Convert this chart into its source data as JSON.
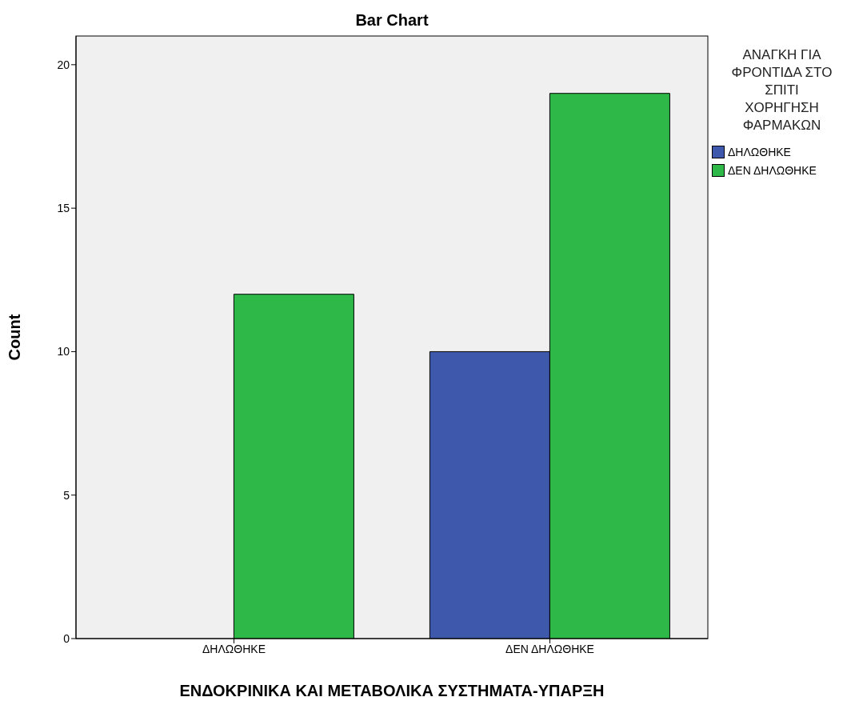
{
  "chart_data": {
    "type": "bar",
    "title": "Bar Chart",
    "xlabel": "ΕΝΔΟΚΡΙΝΙΚΑ ΚΑΙ ΜΕΤΑΒΟΛΙΚΑ ΣΥΣΤΗΜΑΤΑ-ΥΠΑΡΞΗ",
    "ylabel": "Count",
    "legend_title": "ΑΝΑΓΚΗ ΓΙΑ ΦΡΟΝΤΙΔΑ ΣΤΟ ΣΠΙΤΙ ΧΟΡΗΓΗΣΗ ΦΑΡΜΑΚΩΝ",
    "categories": [
      "ΔΗΛΩΘΗΚΕ",
      "ΔΕΝ ΔΗΛΩΘΗΚΕ"
    ],
    "series": [
      {
        "name": "ΔΗΛΩΘΗΚΕ",
        "color": "#3e58ac",
        "values": [
          0,
          10
        ]
      },
      {
        "name": "ΔΕΝ ΔΗΛΩΘΗΚΕ",
        "color": "#2eb848",
        "values": [
          12,
          19
        ]
      }
    ],
    "ylim": [
      0,
      21
    ],
    "yticks": [
      0,
      5,
      10,
      15,
      20
    ],
    "grid": false,
    "legend": "top right"
  }
}
